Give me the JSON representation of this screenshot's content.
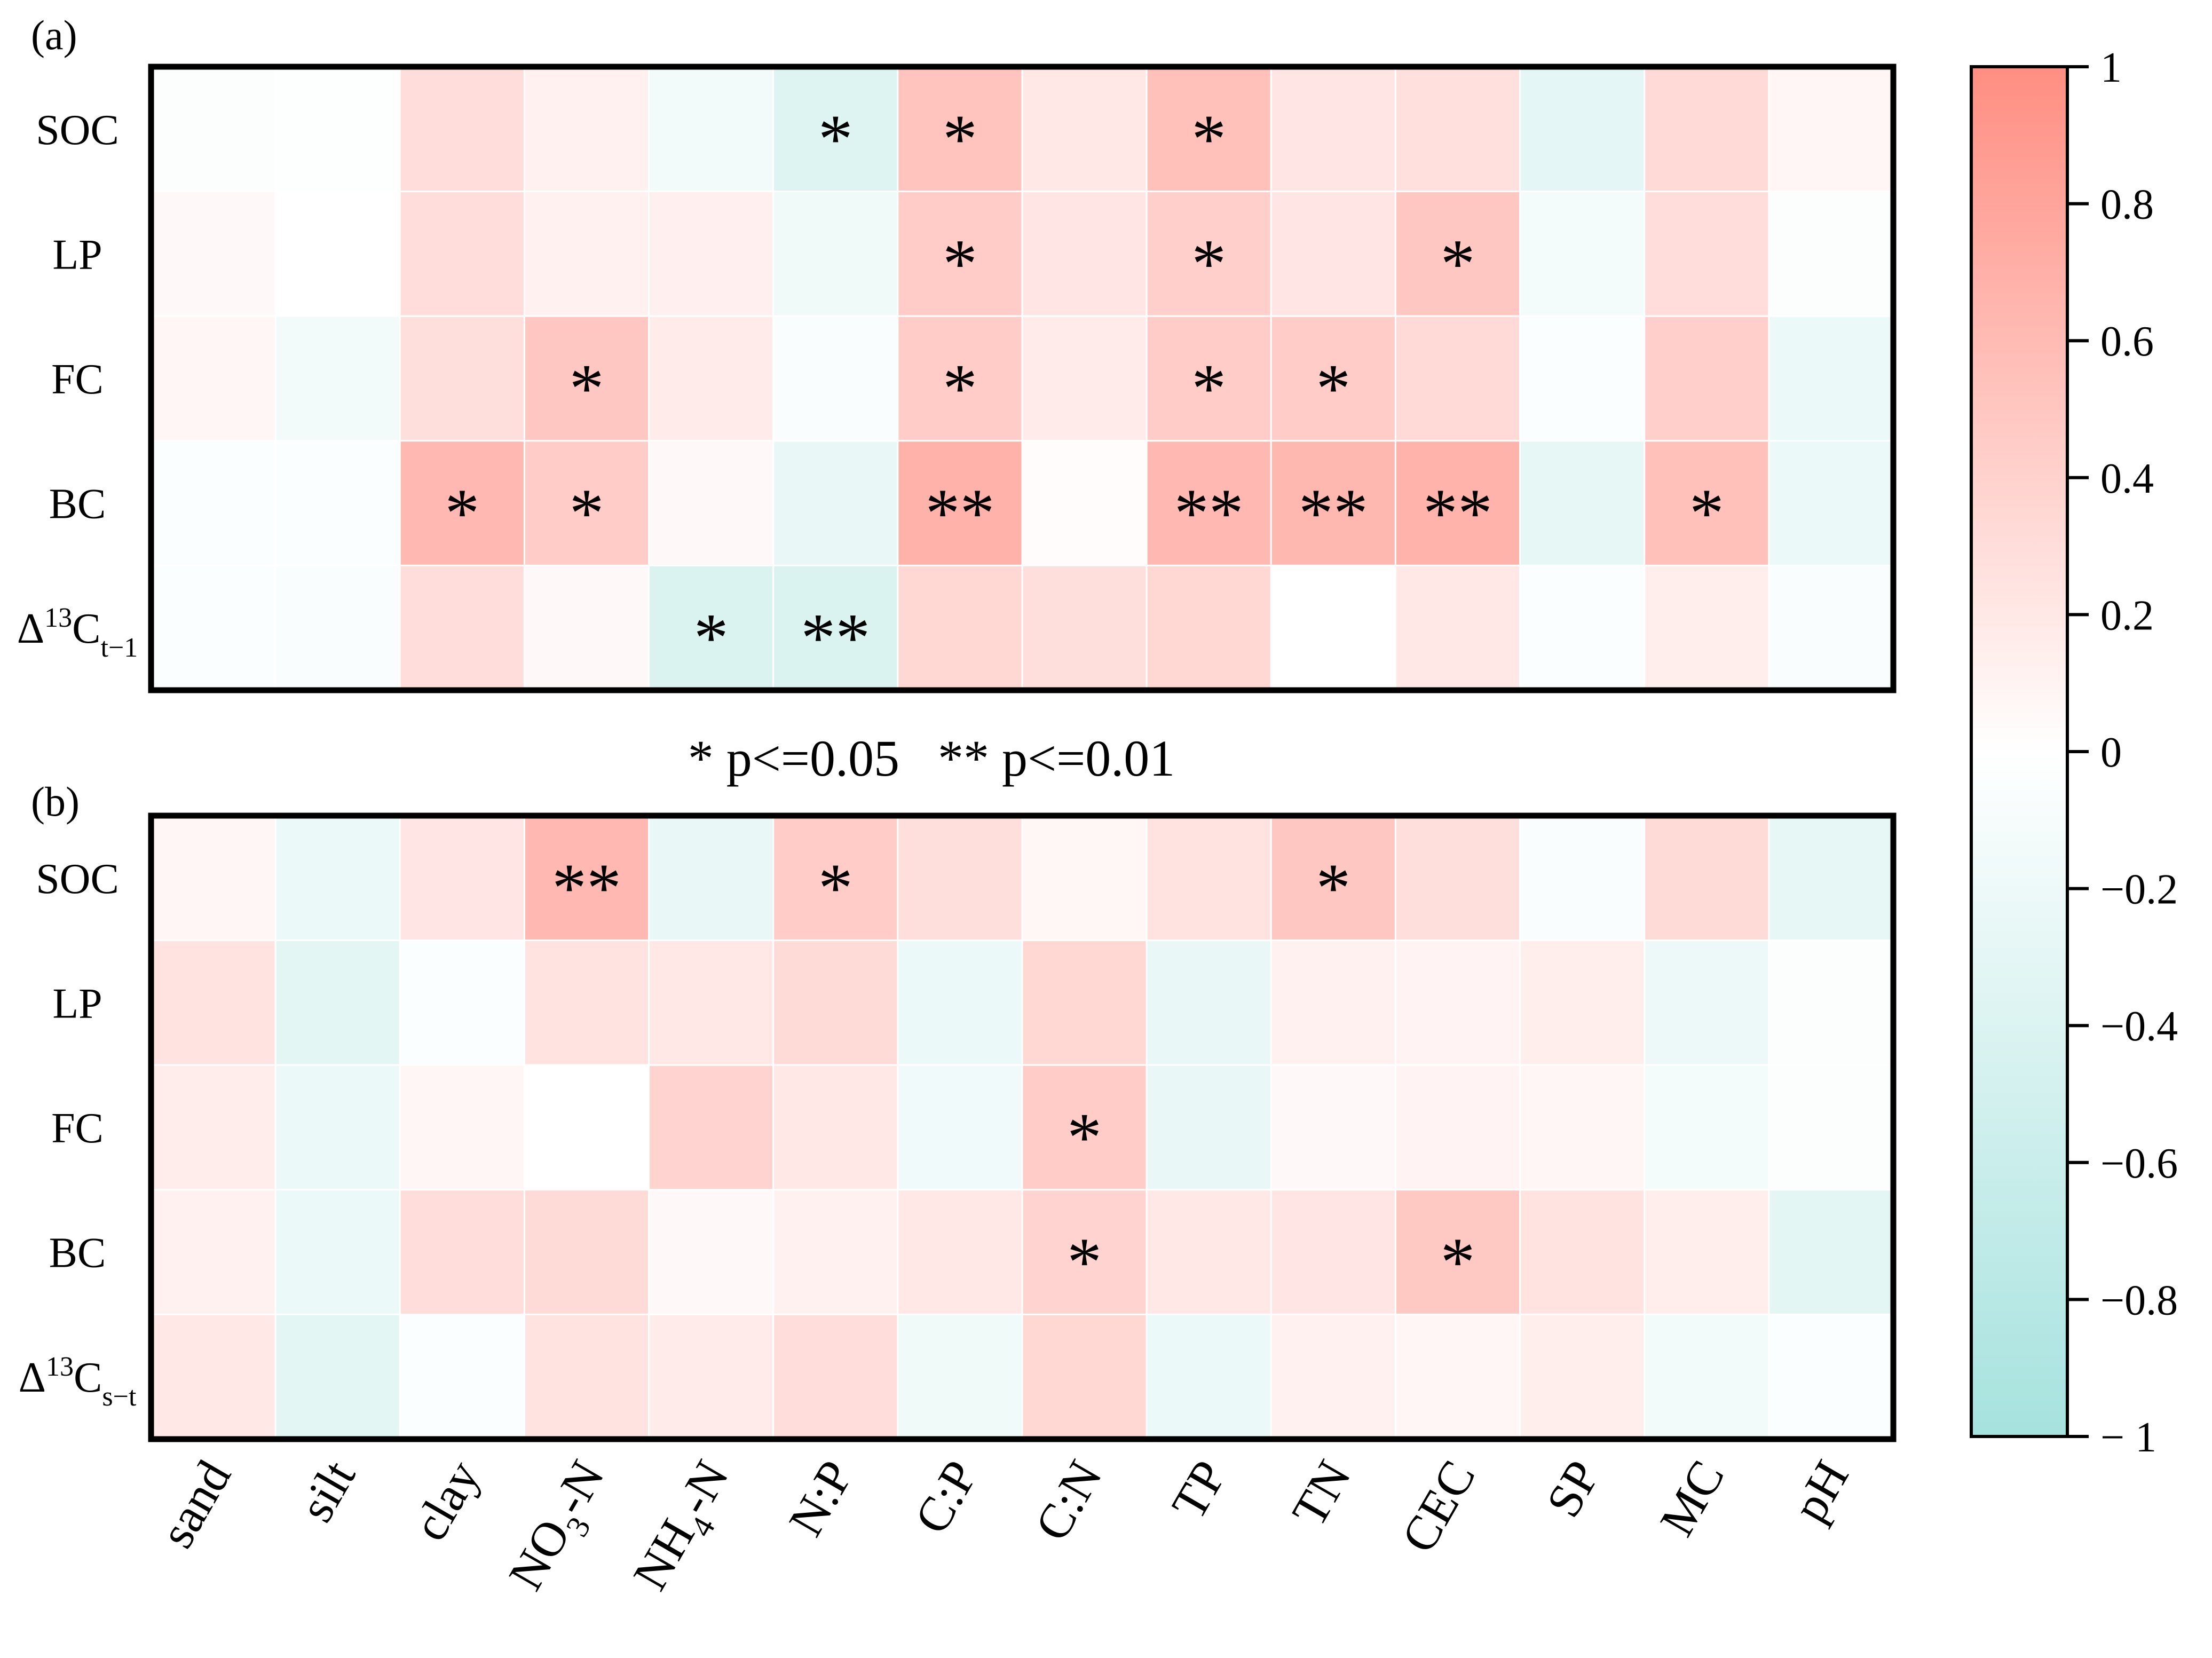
{
  "chart_data": {
    "type": "heatmap",
    "columns": [
      "sand",
      "silt",
      "clay",
      "NO3-N",
      "NH4-N",
      "N:P",
      "C:P",
      "C:N",
      "TP",
      "TN",
      "CEC",
      "SP",
      "MC",
      "pH"
    ],
    "colorbar": {
      "min": -1,
      "max": 1,
      "ticks": [
        1,
        0.8,
        0.6,
        0.4,
        0.2,
        0,
        -0.2,
        -0.4,
        -0.6,
        -0.8,
        -1
      ],
      "tick_labels": [
        "1",
        "0.8",
        "0.6",
        "0.4",
        "0.2",
        "0",
        "−0.2",
        "−0.4",
        "−0.6",
        "−0.8",
        "− 1"
      ],
      "color_positive": "#ff8e82",
      "color_zero": "#ffffff",
      "color_negative": "#a6e2de"
    },
    "significance_legend": "* p<=0.05   ** p<=0.01",
    "panels": [
      {
        "label": "(a)",
        "rows": [
          {
            "name": "SOC",
            "sub": "",
            "values": [
              -0.05,
              -0.02,
              0.3,
              0.12,
              -0.15,
              -0.38,
              0.52,
              0.2,
              0.55,
              0.22,
              0.27,
              -0.3,
              0.33,
              0.08
            ],
            "sig": [
              "",
              "",
              "",
              "",
              "",
              "*",
              "*",
              "",
              "*",
              "",
              "",
              "",
              "",
              ""
            ]
          },
          {
            "name": "LP",
            "sub": "",
            "values": [
              0.06,
              0.0,
              0.3,
              0.12,
              0.14,
              -0.18,
              0.45,
              0.22,
              0.42,
              0.22,
              0.5,
              -0.12,
              0.3,
              -0.05
            ],
            "sig": [
              "",
              "",
              "",
              "",
              "",
              "",
              "*",
              "",
              "*",
              "",
              "*",
              "",
              "",
              ""
            ]
          },
          {
            "name": "FC",
            "sub": "",
            "values": [
              0.08,
              -0.15,
              0.28,
              0.5,
              0.18,
              -0.06,
              0.45,
              0.18,
              0.45,
              0.45,
              0.33,
              -0.04,
              0.42,
              -0.22
            ],
            "sig": [
              "",
              "",
              "",
              "*",
              "",
              "",
              "*",
              "",
              "*",
              "*",
              "",
              "",
              "",
              ""
            ]
          },
          {
            "name": "BC",
            "sub": "",
            "values": [
              -0.04,
              -0.04,
              0.62,
              0.45,
              0.06,
              -0.25,
              0.68,
              0.03,
              0.62,
              0.63,
              0.67,
              -0.28,
              0.55,
              -0.22
            ],
            "sig": [
              "",
              "",
              "*",
              "*",
              "",
              "",
              "**",
              "",
              "**",
              "**",
              "**",
              "",
              "*",
              ""
            ]
          },
          {
            "name": "Δ",
            "sup": "13",
            "main": "C",
            "sub": "t−1",
            "values": [
              -0.04,
              -0.07,
              0.3,
              0.06,
              -0.42,
              -0.42,
              0.35,
              0.28,
              0.35,
              0.0,
              0.2,
              -0.04,
              0.15,
              -0.06
            ],
            "sig": [
              "",
              "",
              "",
              "",
              "*",
              "**",
              "",
              "",
              "",
              "",
              "",
              "",
              "",
              ""
            ]
          }
        ]
      },
      {
        "label": "(b)",
        "rows": [
          {
            "name": "SOC",
            "sub": "",
            "values": [
              0.08,
              -0.22,
              0.22,
              0.62,
              -0.25,
              0.45,
              0.28,
              0.07,
              0.25,
              0.5,
              0.28,
              -0.06,
              0.32,
              -0.28
            ],
            "sig": [
              "",
              "",
              "",
              "**",
              "",
              "*",
              "",
              "",
              "",
              "*",
              "",
              "",
              "",
              ""
            ]
          },
          {
            "name": "LP",
            "sub": "",
            "values": [
              0.25,
              -0.32,
              -0.04,
              0.25,
              0.2,
              0.32,
              -0.22,
              0.35,
              -0.25,
              0.12,
              0.1,
              0.15,
              -0.2,
              -0.05
            ],
            "sig": [
              "",
              "",
              "",
              "",
              "",
              "",
              "",
              "",
              "",
              "",
              "",
              "",
              "",
              ""
            ]
          },
          {
            "name": "FC",
            "sub": "",
            "values": [
              0.16,
              -0.22,
              0.08,
              0.0,
              0.38,
              0.2,
              -0.16,
              0.45,
              -0.25,
              0.06,
              0.1,
              0.08,
              -0.12,
              -0.05
            ],
            "sig": [
              "",
              "",
              "",
              "",
              "",
              "",
              "",
              "*",
              "",
              "",
              "",
              "",
              "",
              ""
            ]
          },
          {
            "name": "BC",
            "sub": "",
            "values": [
              0.12,
              -0.22,
              0.3,
              0.32,
              0.06,
              0.12,
              0.2,
              0.38,
              0.2,
              0.22,
              0.48,
              0.25,
              0.15,
              -0.32
            ],
            "sig": [
              "",
              "",
              "",
              "",
              "",
              "",
              "",
              "*",
              "",
              "",
              "*",
              "",
              "",
              ""
            ]
          },
          {
            "name": "Δ",
            "sup": "13",
            "main": "C",
            "sub": "s−t",
            "values": [
              0.2,
              -0.32,
              -0.04,
              0.25,
              0.18,
              0.3,
              -0.18,
              0.35,
              -0.22,
              0.12,
              0.08,
              0.15,
              -0.15,
              -0.04
            ],
            "sig": [
              "",
              "",
              "",
              "",
              "",
              "",
              "",
              "",
              "",
              "",
              "",
              "",
              "",
              ""
            ]
          }
        ]
      }
    ]
  }
}
